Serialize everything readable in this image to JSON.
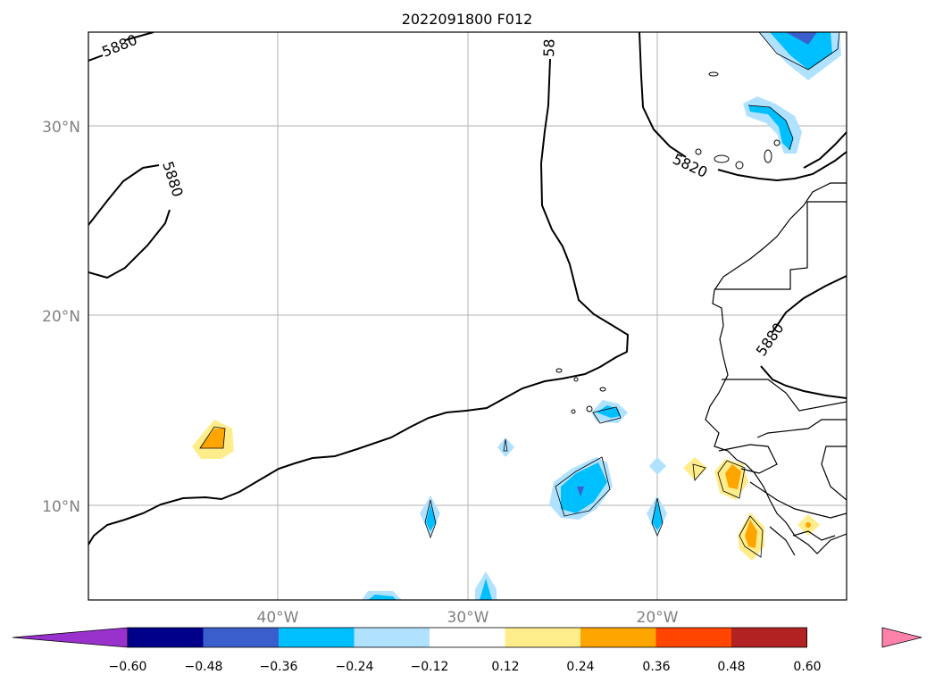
{
  "title": "2022091800 F012",
  "lat_labels": [
    "30°N",
    "20°N",
    "10°N"
  ],
  "lon_labels": [
    "40°W",
    "30°W",
    "20°W"
  ],
  "contour_labels": [
    "5880",
    "5880",
    "5820",
    "5880",
    "58"
  ],
  "colorbar": {
    "ticks": [
      "−0.60",
      "−0.48",
      "−0.36",
      "−0.24",
      "−0.12",
      "0.12",
      "0.24",
      "0.36",
      "0.48",
      "0.60"
    ],
    "colors": [
      "#9932cc",
      "#00008b",
      "#3a5fcd",
      "#00bfff",
      "#b0e2ff",
      "#ffffff",
      "#ffec8b",
      "#ffa500",
      "#ff4500",
      "#b22222",
      "#ff82ab"
    ]
  },
  "colors": {
    "frame": "#000000",
    "grid": "#b0b0b0",
    "axis_label": "#808080",
    "neg_light": "#b0e2ff",
    "neg_mid": "#00bfff",
    "neg_dark": "#3a5fcd",
    "pos_light": "#ffec8b",
    "pos_mid": "#ffa500"
  }
}
